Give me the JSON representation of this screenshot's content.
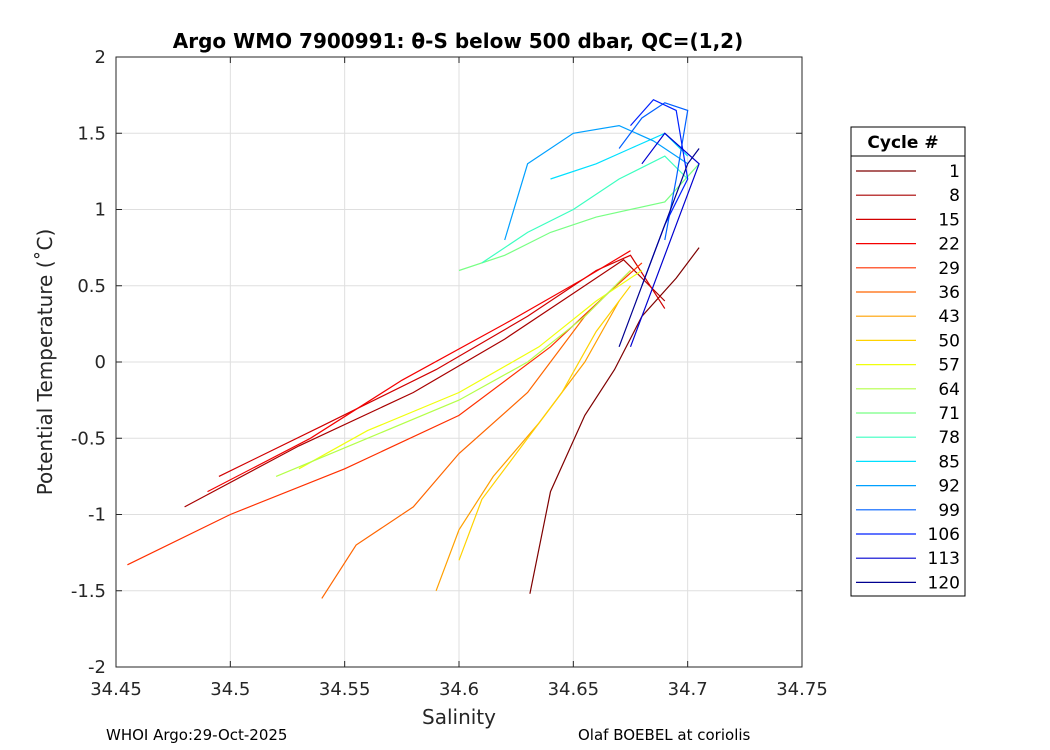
{
  "chart_data": {
    "type": "line",
    "title": "Argo WMO 7900991: θ-S below 500 dbar,  QC=(1,2)",
    "xlabel": "Salinity",
    "ylabel": "Potential Temperature (˚C)",
    "xlim": [
      34.45,
      34.75
    ],
    "ylim": [
      -2,
      2
    ],
    "xticks": [
      "34.45",
      "34.5",
      "34.55",
      "34.6",
      "34.65",
      "34.7",
      "34.75"
    ],
    "yticks": [
      "2",
      "1.5",
      "1",
      "0.5",
      "0",
      "-0.5",
      "-1",
      "-1.5",
      "-2"
    ],
    "grid": true,
    "legend": {
      "title": "Cycle #",
      "placement": "right",
      "entries": [
        "1",
        "8",
        "15",
        "22",
        "29",
        "36",
        "43",
        "50",
        "57",
        "64",
        "71",
        "78",
        "85",
        "92",
        "99",
        "106",
        "113",
        "120"
      ],
      "colors": [
        "#7f0000",
        "#a80000",
        "#d10000",
        "#f50000",
        "#ff3000",
        "#ff6600",
        "#ffa000",
        "#ffd200",
        "#f0ff0c",
        "#b4ff48",
        "#78ff84",
        "#3cffc0",
        "#00e0ff",
        "#00a0ff",
        "#0060ff",
        "#0020ff",
        "#0000d0",
        "#000090"
      ]
    },
    "series": [
      {
        "cycle": "1",
        "points": [
          [
            34.631,
            -1.52
          ],
          [
            34.64,
            -0.85
          ],
          [
            34.655,
            -0.35
          ],
          [
            34.668,
            -0.05
          ],
          [
            34.68,
            0.3
          ],
          [
            34.695,
            0.55
          ],
          [
            34.705,
            0.75
          ]
        ]
      },
      {
        "cycle": "8",
        "points": [
          [
            34.48,
            -0.95
          ],
          [
            34.53,
            -0.55
          ],
          [
            34.58,
            -0.2
          ],
          [
            34.62,
            0.15
          ],
          [
            34.65,
            0.45
          ],
          [
            34.672,
            0.67
          ],
          [
            34.69,
            0.4
          ]
        ]
      },
      {
        "cycle": "15",
        "points": [
          [
            34.495,
            -0.75
          ],
          [
            34.54,
            -0.42
          ],
          [
            34.59,
            -0.05
          ],
          [
            34.63,
            0.3
          ],
          [
            34.66,
            0.6
          ],
          [
            34.675,
            0.7
          ],
          [
            34.69,
            0.35
          ]
        ]
      },
      {
        "cycle": "22",
        "points": [
          [
            34.49,
            -0.85
          ],
          [
            34.535,
            -0.5
          ],
          [
            34.575,
            -0.12
          ],
          [
            34.62,
            0.25
          ],
          [
            34.655,
            0.55
          ],
          [
            34.675,
            0.73
          ]
        ]
      },
      {
        "cycle": "29",
        "points": [
          [
            34.455,
            -1.33
          ],
          [
            34.5,
            -1.0
          ],
          [
            34.55,
            -0.7
          ],
          [
            34.6,
            -0.35
          ],
          [
            34.64,
            0.1
          ],
          [
            34.665,
            0.45
          ],
          [
            34.68,
            0.65
          ]
        ]
      },
      {
        "cycle": "36",
        "points": [
          [
            34.54,
            -1.55
          ],
          [
            34.555,
            -1.2
          ],
          [
            34.58,
            -0.95
          ],
          [
            34.6,
            -0.6
          ],
          [
            34.63,
            -0.2
          ],
          [
            34.655,
            0.3
          ],
          [
            34.675,
            0.6
          ]
        ]
      },
      {
        "cycle": "43",
        "points": [
          [
            34.59,
            -1.5
          ],
          [
            34.6,
            -1.1
          ],
          [
            34.615,
            -0.75
          ],
          [
            34.635,
            -0.4
          ],
          [
            34.655,
            0.0
          ],
          [
            34.67,
            0.4
          ]
        ]
      },
      {
        "cycle": "50",
        "points": [
          [
            34.6,
            -1.3
          ],
          [
            34.61,
            -0.9
          ],
          [
            34.625,
            -0.6
          ],
          [
            34.645,
            -0.2
          ],
          [
            34.66,
            0.2
          ],
          [
            34.675,
            0.5
          ]
        ]
      },
      {
        "cycle": "57",
        "points": [
          [
            34.53,
            -0.7
          ],
          [
            34.56,
            -0.45
          ],
          [
            34.6,
            -0.2
          ],
          [
            34.635,
            0.1
          ],
          [
            34.66,
            0.4
          ],
          [
            34.68,
            0.6
          ]
        ]
      },
      {
        "cycle": "64",
        "points": [
          [
            34.52,
            -0.75
          ],
          [
            34.56,
            -0.5
          ],
          [
            34.6,
            -0.25
          ],
          [
            34.63,
            0.0
          ],
          [
            34.655,
            0.3
          ],
          [
            34.675,
            0.6
          ]
        ]
      },
      {
        "cycle": "71",
        "points": [
          [
            34.6,
            0.6
          ],
          [
            34.62,
            0.7
          ],
          [
            34.64,
            0.85
          ],
          [
            34.66,
            0.95
          ],
          [
            34.69,
            1.05
          ],
          [
            34.705,
            1.3
          ]
        ]
      },
      {
        "cycle": "78",
        "points": [
          [
            34.61,
            0.65
          ],
          [
            34.63,
            0.85
          ],
          [
            34.65,
            1.0
          ],
          [
            34.67,
            1.2
          ],
          [
            34.69,
            1.35
          ],
          [
            34.7,
            1.2
          ]
        ]
      },
      {
        "cycle": "85",
        "points": [
          [
            34.64,
            1.2
          ],
          [
            34.66,
            1.3
          ],
          [
            34.675,
            1.4
          ],
          [
            34.69,
            1.5
          ],
          [
            34.7,
            1.35
          ]
        ]
      },
      {
        "cycle": "92",
        "points": [
          [
            34.62,
            0.8
          ],
          [
            34.63,
            1.3
          ],
          [
            34.65,
            1.5
          ],
          [
            34.67,
            1.55
          ],
          [
            34.685,
            1.45
          ],
          [
            34.7,
            1.3
          ]
        ]
      },
      {
        "cycle": "99",
        "points": [
          [
            34.67,
            1.4
          ],
          [
            34.68,
            1.6
          ],
          [
            34.69,
            1.7
          ],
          [
            34.7,
            1.65
          ],
          [
            34.695,
            1.2
          ],
          [
            34.69,
            0.8
          ]
        ]
      },
      {
        "cycle": "106",
        "points": [
          [
            34.675,
            1.55
          ],
          [
            34.685,
            1.72
          ],
          [
            34.695,
            1.65
          ],
          [
            34.7,
            1.2
          ],
          [
            34.69,
            0.9
          ],
          [
            34.68,
            0.5
          ]
        ]
      },
      {
        "cycle": "113",
        "points": [
          [
            34.68,
            1.3
          ],
          [
            34.69,
            1.5
          ],
          [
            34.705,
            1.3
          ],
          [
            34.695,
            0.9
          ],
          [
            34.685,
            0.5
          ],
          [
            34.675,
            0.1
          ]
        ]
      },
      {
        "cycle": "120",
        "points": [
          [
            34.67,
            0.1
          ],
          [
            34.68,
            0.5
          ],
          [
            34.69,
            0.9
          ],
          [
            34.7,
            1.3
          ],
          [
            34.705,
            1.4
          ]
        ]
      }
    ]
  },
  "footer": {
    "left": "WHOI Argo:29-Oct-2025",
    "right": "Olaf BOEBEL at coriolis"
  }
}
